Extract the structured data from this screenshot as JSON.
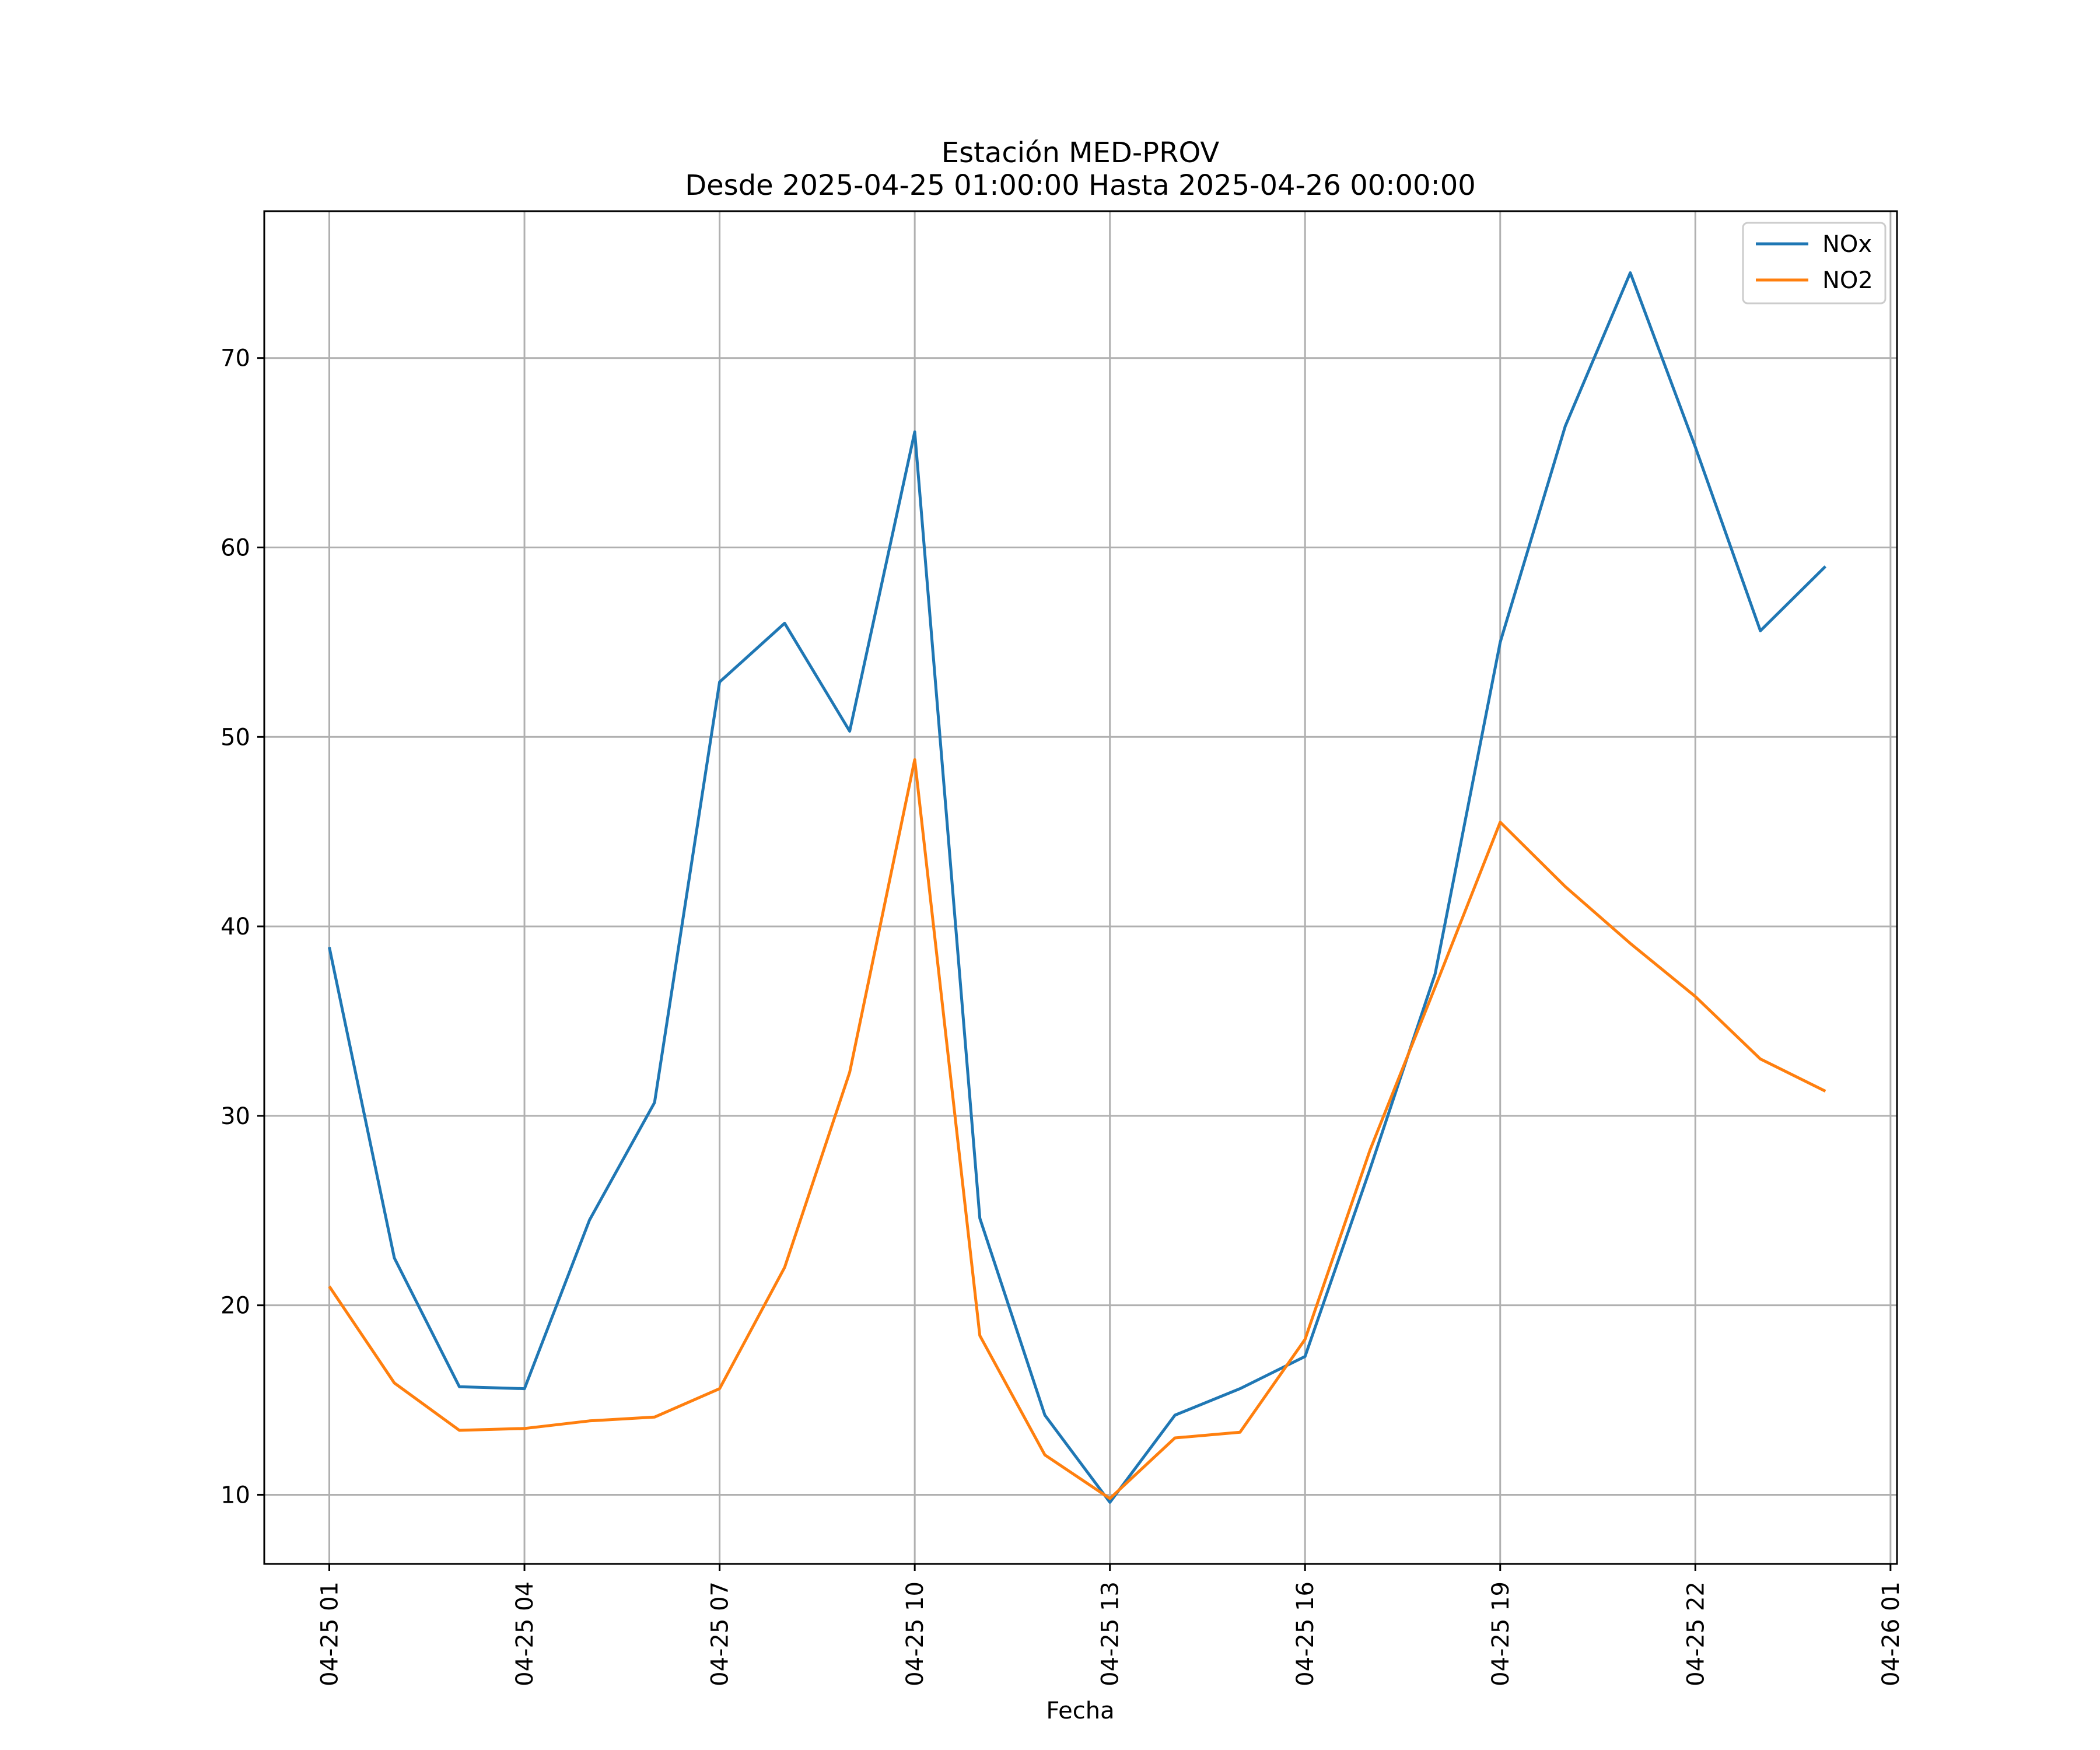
{
  "chart_data": {
    "type": "line",
    "title": "Estación MED-PROV",
    "subtitle": "Desde 2025-04-25 01:00:00 Hasta 2025-04-26 00:00:00",
    "xlabel": "Fecha",
    "ylabel": "",
    "x": [
      "2025-04-25 01:00",
      "2025-04-25 02:00",
      "2025-04-25 03:00",
      "2025-04-25 04:00",
      "2025-04-25 05:00",
      "2025-04-25 06:00",
      "2025-04-25 07:00",
      "2025-04-25 08:00",
      "2025-04-25 09:00",
      "2025-04-25 10:00",
      "2025-04-25 11:00",
      "2025-04-25 12:00",
      "2025-04-25 13:00",
      "2025-04-25 14:00",
      "2025-04-25 15:00",
      "2025-04-25 16:00",
      "2025-04-25 17:00",
      "2025-04-25 18:00",
      "2025-04-25 19:00",
      "2025-04-25 20:00",
      "2025-04-25 21:00",
      "2025-04-25 22:00",
      "2025-04-25 23:00",
      "2025-04-26 00:00"
    ],
    "series": [
      {
        "name": "NOx",
        "color": "#1f77b4",
        "values": [
          38.9,
          22.5,
          15.7,
          15.6,
          24.5,
          30.7,
          52.9,
          56.0,
          50.3,
          66.1,
          24.6,
          14.2,
          9.6,
          14.2,
          15.6,
          17.3,
          27.2,
          37.5,
          55.0,
          66.4,
          74.5,
          65.3,
          55.6,
          59.0
        ]
      },
      {
        "name": "NO2",
        "color": "#ff7f0e",
        "values": [
          21.0,
          15.9,
          13.4,
          13.5,
          13.9,
          14.1,
          15.6,
          22.0,
          32.3,
          48.8,
          18.4,
          12.1,
          9.8,
          13.0,
          13.3,
          18.2,
          28.2,
          36.8,
          45.5,
          42.1,
          39.1,
          36.3,
          33.0,
          31.3
        ]
      }
    ],
    "xticks": [
      "04-25 01",
      "04-25 04",
      "04-25 07",
      "04-25 10",
      "04-25 13",
      "04-25 16",
      "04-25 19",
      "04-25 22",
      "04-26 01"
    ],
    "yticks": [
      10,
      20,
      30,
      40,
      50,
      60,
      70
    ],
    "xlim": [
      "2025-04-25 00:00",
      "2025-04-26 01:06"
    ],
    "ylim": [
      6.35,
      77.75
    ],
    "grid": true,
    "legend_position": "top-right"
  }
}
